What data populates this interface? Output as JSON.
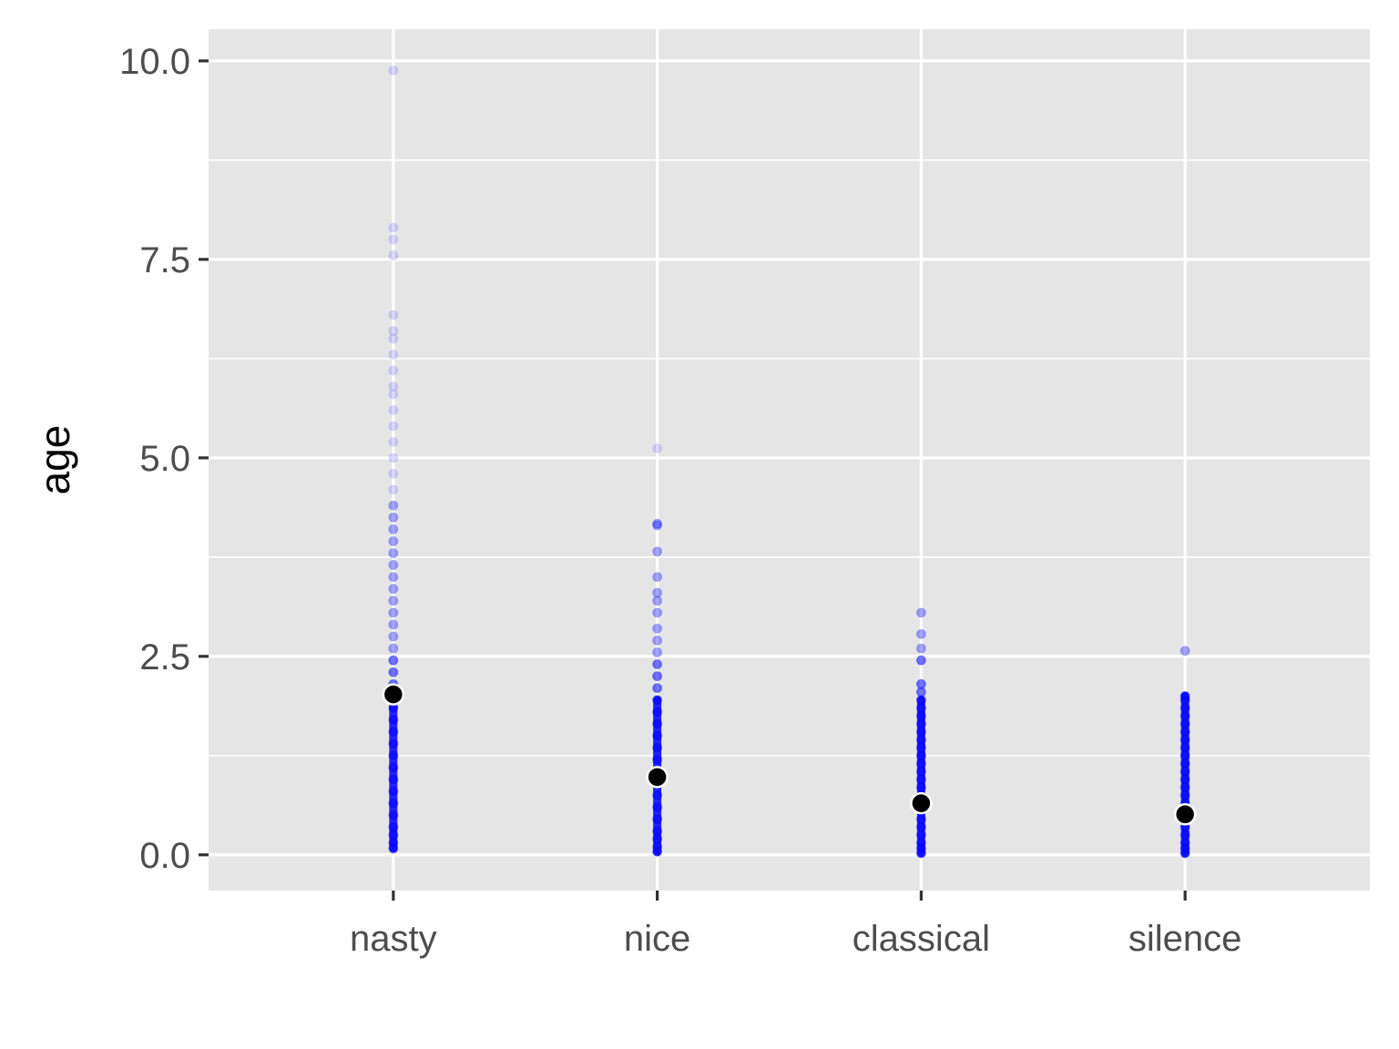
{
  "chart_data": {
    "type": "scatter",
    "title": "",
    "xlabel": "",
    "ylabel": "age",
    "categories": [
      "nasty",
      "nice",
      "classical",
      "silence"
    ],
    "ylim": [
      -0.45,
      10.4
    ],
    "y_ticks": [
      0.0,
      2.5,
      5.0,
      7.5,
      10.0
    ],
    "y_tick_labels": [
      "0.0",
      "2.5",
      "5.0",
      "7.5",
      "10.0"
    ],
    "grid": true,
    "legend": "none",
    "point_color": "#0000ff",
    "mean_color": "#000000",
    "means": [
      2.02,
      0.98,
      0.65,
      0.51
    ],
    "points": [
      {
        "category": "nasty",
        "y": [
          0.08,
          0.15,
          0.25,
          0.35,
          0.5,
          0.65,
          0.8,
          0.95,
          1.1,
          1.25,
          1.4,
          1.55,
          1.7,
          1.85,
          2.0,
          2.15,
          2.3,
          2.45,
          2.6,
          2.75,
          2.9,
          3.05,
          3.2,
          3.35,
          3.5,
          3.65,
          3.8,
          3.95,
          4.1,
          4.25,
          4.4,
          4.6,
          4.8,
          5.0,
          5.2,
          5.4,
          5.6,
          5.8,
          5.9,
          6.1,
          6.3,
          6.5,
          6.6,
          6.8,
          7.55,
          7.75,
          7.9,
          9.88
        ]
      },
      {
        "category": "nice",
        "y": [
          0.04,
          0.1,
          0.2,
          0.3,
          0.45,
          0.6,
          0.75,
          0.9,
          1.05,
          1.2,
          1.35,
          1.5,
          1.65,
          1.8,
          1.95,
          2.1,
          2.25,
          2.4,
          2.55,
          2.7,
          2.85,
          3.05,
          3.2,
          3.3,
          3.5,
          3.82,
          4.15,
          4.17,
          5.12
        ]
      },
      {
        "category": "classical",
        "y": [
          0.02,
          0.08,
          0.15,
          0.25,
          0.35,
          0.45,
          0.55,
          0.65,
          0.75,
          0.85,
          0.95,
          1.05,
          1.15,
          1.25,
          1.35,
          1.45,
          1.55,
          1.65,
          1.75,
          1.85,
          1.95,
          2.05,
          2.15,
          2.45,
          2.6,
          2.78,
          3.05
        ]
      },
      {
        "category": "silence",
        "y": [
          0.02,
          0.08,
          0.15,
          0.25,
          0.35,
          0.45,
          0.55,
          0.65,
          0.75,
          0.85,
          0.95,
          1.05,
          1.15,
          1.25,
          1.35,
          1.45,
          1.55,
          1.65,
          1.75,
          1.85,
          1.95,
          2.0,
          2.57
        ]
      }
    ]
  }
}
